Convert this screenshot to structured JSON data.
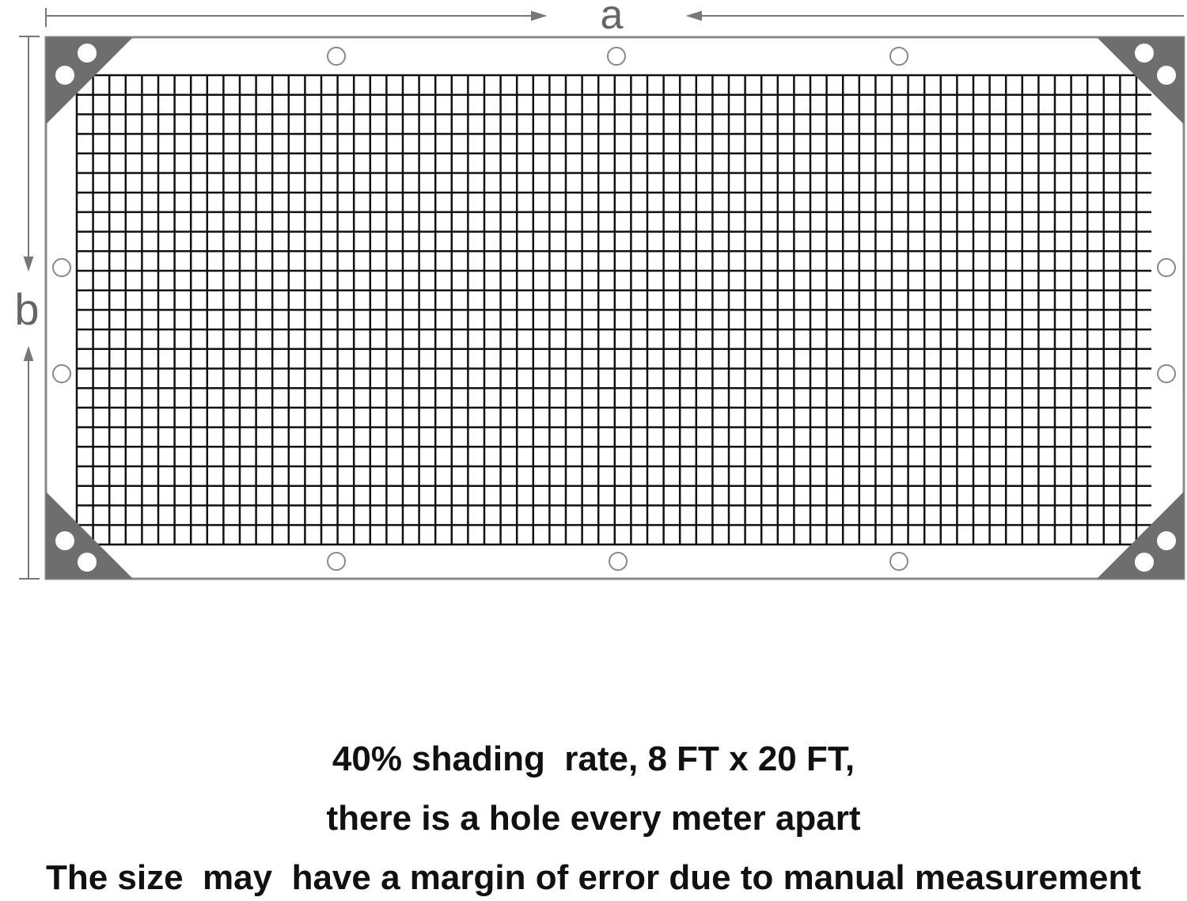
{
  "dimension_labels": {
    "width": "a",
    "height": "b"
  },
  "colors": {
    "mesh": "#111111",
    "corner": "#6e6e6e",
    "frame": "#8a8a8a",
    "dimension": "#777777"
  },
  "caption": {
    "line1": "40% shading  rate, 8 FT x 20 FT,",
    "line2": "there is a hole every meter apart",
    "line3": "The size  may  have a margin of error due to manual measurement"
  }
}
